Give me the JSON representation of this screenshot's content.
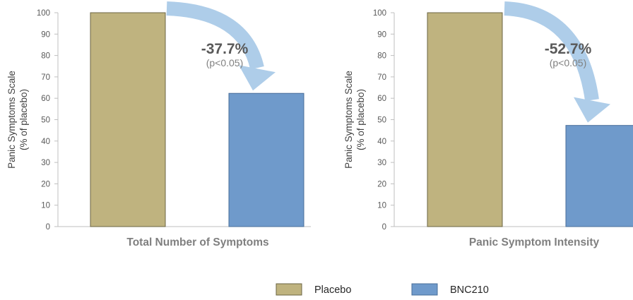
{
  "chart_data": [
    {
      "type": "bar",
      "title": "",
      "xlabel": "Total Number of Symptoms",
      "ylabel_line1": "Panic Symptoms Scale",
      "ylabel_line2": "(% of placebo)",
      "ylim": [
        0,
        100
      ],
      "yticks": [
        "0",
        "10",
        "20",
        "30",
        "40",
        "50",
        "60",
        "70",
        "80",
        "90",
        "100"
      ],
      "categories": [
        "Placebo",
        "BNC210"
      ],
      "values": [
        100,
        62.3
      ],
      "annotation": {
        "change": "-37.7%",
        "pvalue": "(p<0.05)"
      }
    },
    {
      "type": "bar",
      "title": "",
      "xlabel": "Panic Symptom Intensity",
      "ylabel_line1": "Panic Symptoms Scale",
      "ylabel_line2": "(% of placebo)",
      "ylim": [
        0,
        100
      ],
      "yticks": [
        "0",
        "10",
        "20",
        "30",
        "40",
        "50",
        "60",
        "70",
        "80",
        "90",
        "100"
      ],
      "categories": [
        "Placebo",
        "BNC210"
      ],
      "values": [
        100,
        47.3
      ],
      "annotation": {
        "change": "-52.7%",
        "pvalue": "(p<0.05)"
      }
    }
  ],
  "legend": [
    {
      "label": "Placebo",
      "color": "#bfb37f"
    },
    {
      "label": "BNC210",
      "color": "#6f9acb"
    }
  ],
  "colors": {
    "placebo": "#bfb37f",
    "bnc210": "#6f9acb",
    "arrow": "#aecde9",
    "axis": "#bfbfbf"
  }
}
